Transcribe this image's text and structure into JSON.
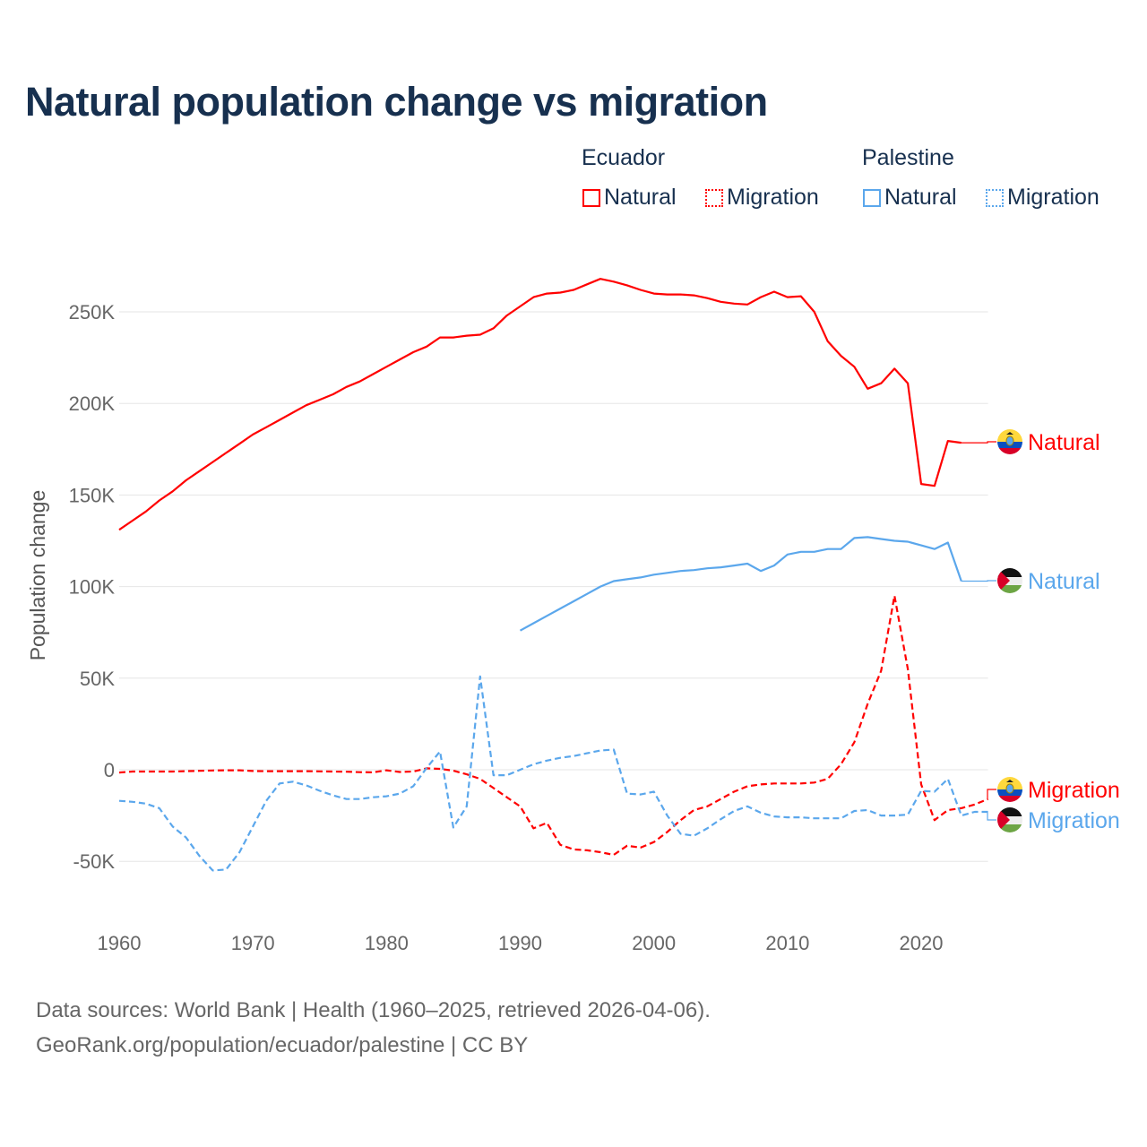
{
  "title": "Natural population change vs migration",
  "legend": {
    "groups": [
      {
        "name": "Ecuador",
        "color": "#ff0000",
        "items": [
          "Natural",
          "Migration"
        ]
      },
      {
        "name": "Palestine",
        "color": "#5ba7ec",
        "items": [
          "Natural",
          "Migration"
        ]
      }
    ]
  },
  "footer": {
    "line1": "Data sources: World Bank | Health (1960–2025, retrieved 2026-04-06).",
    "line2": "GeoRank.org/population/ecuador/palestine | CC BY"
  },
  "chart_data": {
    "type": "line",
    "title": "Natural population change vs migration",
    "xlabel": "",
    "ylabel": "Population change",
    "xlim": [
      1960,
      2025
    ],
    "ylim": [
      -80000,
      290000
    ],
    "x_ticks": [
      1960,
      1970,
      1980,
      1990,
      2000,
      2010,
      2020
    ],
    "x_tick_labels": [
      "1960",
      "1970",
      "1980",
      "1990",
      "2000",
      "2010",
      "2020"
    ],
    "y_ticks": [
      -50000,
      0,
      50000,
      100000,
      150000,
      200000,
      250000
    ],
    "y_tick_labels": [
      "-50K",
      "0",
      "50K",
      "100K",
      "150K",
      "200K",
      "250K"
    ],
    "grid": true,
    "legend_position": "top-right",
    "series": [
      {
        "name": "Ecuador Natural",
        "country": "Ecuador",
        "kind": "Natural",
        "end_label": "Natural",
        "color": "#ff0000",
        "dash": false,
        "start": 1960,
        "values": [
          131000,
          136000,
          141000,
          147000,
          152000,
          158000,
          163000,
          168000,
          173000,
          178000,
          183000,
          187000,
          191000,
          195000,
          199000,
          202000,
          205000,
          209000,
          212000,
          216000,
          220000,
          224000,
          228000,
          231000,
          236000,
          236000,
          237000,
          237500,
          241000,
          248000,
          253000,
          258000,
          260000,
          260500,
          262000,
          265000,
          268000,
          266500,
          264500,
          262000,
          260000,
          259500,
          259500,
          259000,
          257500,
          255500,
          254500,
          254000,
          258000,
          261000,
          258000,
          258500,
          250000,
          234000,
          226000,
          220000,
          208000,
          211000,
          219000,
          211000,
          156000,
          155000,
          179500,
          178500
        ]
      },
      {
        "name": "Ecuador Migration",
        "country": "Ecuador",
        "kind": "Migration",
        "end_label": "Migration",
        "color": "#ff0000",
        "dash": true,
        "start": 1960,
        "values": [
          -1500,
          -1000,
          -1000,
          -1000,
          -1000,
          -800,
          -600,
          -400,
          -300,
          -300,
          -700,
          -800,
          -800,
          -800,
          -800,
          -900,
          -1000,
          -1100,
          -1300,
          -1400,
          -300,
          -1200,
          -1000,
          800,
          500,
          -500,
          -2500,
          -5000,
          -10000,
          -15000,
          -20000,
          -32000,
          -29000,
          -41000,
          -43500,
          -44000,
          -45000,
          -46500,
          -41500,
          -42500,
          -39500,
          -34000,
          -27500,
          -22000,
          -20000,
          -16000,
          -12000,
          -9000,
          -8000,
          -7500,
          -7500,
          -7500,
          -7000,
          -5000,
          3000,
          15000,
          36000,
          54000,
          95000,
          55000,
          -8000,
          -27500,
          -22000,
          -21000,
          -19000,
          -16000
        ]
      },
      {
        "name": "Palestine Natural",
        "country": "Palestine",
        "kind": "Natural",
        "end_label": "Natural",
        "color": "#5ba7ec",
        "dash": false,
        "start": 1990,
        "values": [
          76000,
          80000,
          84000,
          88000,
          92000,
          96000,
          100000,
          103000,
          104000,
          105000,
          106500,
          107500,
          108500,
          109000,
          110000,
          110500,
          111500,
          112500,
          108500,
          111500,
          117500,
          119000,
          119000,
          120500,
          120500,
          126500,
          127000,
          126000,
          125000,
          124500,
          122500,
          120500,
          124000,
          103000
        ]
      },
      {
        "name": "Palestine Migration",
        "country": "Palestine",
        "kind": "Migration",
        "end_label": "Migration",
        "color": "#5ba7ec",
        "dash": true,
        "start": 1960,
        "values": [
          -17000,
          -17500,
          -18500,
          -21000,
          -31000,
          -37000,
          -47000,
          -55000,
          -54500,
          -45000,
          -31000,
          -17000,
          -7500,
          -6500,
          -8500,
          -11500,
          -14000,
          -16000,
          -16000,
          -15000,
          -14500,
          -13000,
          -9000,
          1000,
          10000,
          -31500,
          -20000,
          51000,
          -3000,
          -3000,
          0,
          3000,
          5000,
          6500,
          7500,
          9000,
          10500,
          11000,
          -13000,
          -13500,
          -12000,
          -25000,
          -35000,
          -36000,
          -32000,
          -27000,
          -22500,
          -20000,
          -23500,
          -25500,
          -26000,
          -26000,
          -26500,
          -26500,
          -26500,
          -22500,
          -22000,
          -25000,
          -25000,
          -24500,
          -11500,
          -12000,
          -5000,
          -25000,
          -23000,
          -23000
        ]
      }
    ]
  }
}
